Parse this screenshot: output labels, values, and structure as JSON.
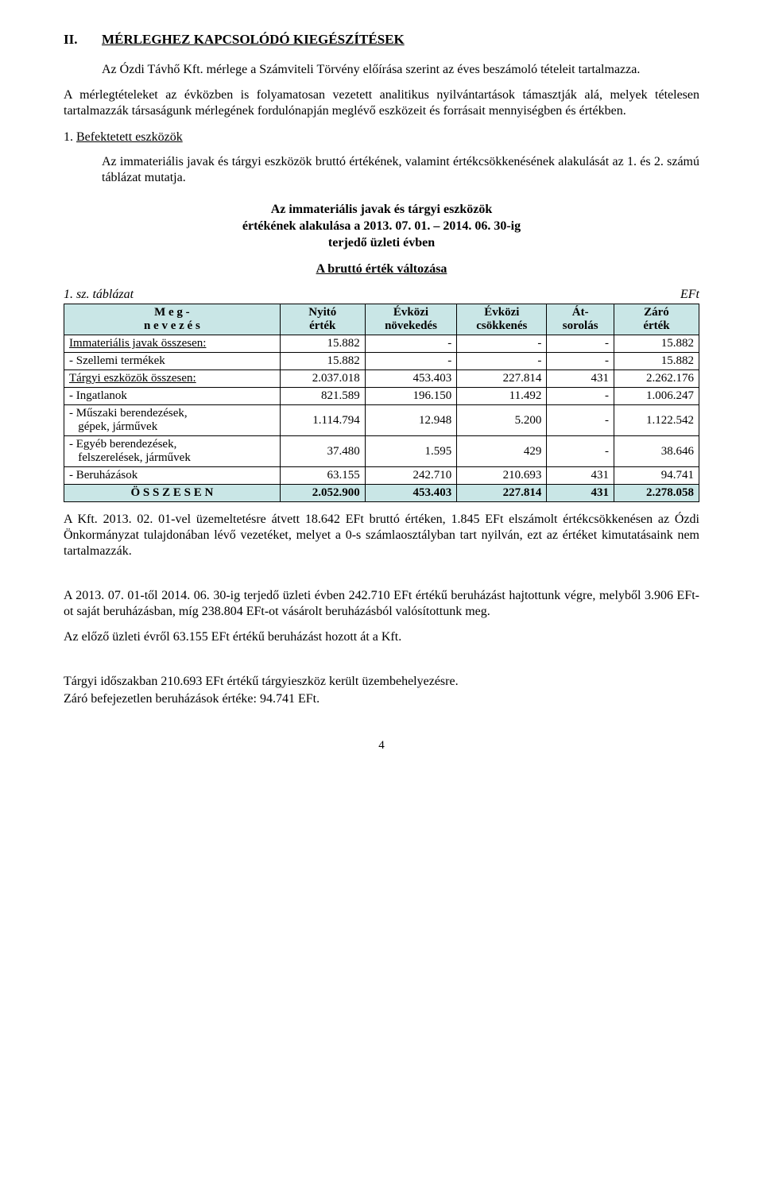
{
  "heading": {
    "roman": "II.",
    "text": "MÉRLEGHEZ KAPCSOLÓDÓ KIEGÉSZÍTÉSEK"
  },
  "para1": "Az Ózdi Távhő Kft. mérlege a Számviteli Törvény előírása szerint az éves beszámoló tételeit tartalmazza.",
  "para2": "A mérlegtételeket az évközben is folyamatosan vezetett analitikus nyilvántartások támasztják alá, melyek tételesen tartalmazzák társaságunk mérlegének fordulónapján meglévő eszközeit és forrásait mennyiségben és értékben.",
  "subheading": {
    "num": "1.",
    "label": "Befektetett eszközök"
  },
  "para3": "Az immateriális javak és tárgyi eszközök bruttó értékének, valamint értékcsökkenésének alakulását az 1. és 2. számú táblázat mutatja.",
  "tableTitle": {
    "l1": "Az immateriális javak és tárgyi eszközök",
    "l2": "értékének alakulása a 2013. 07. 01. – 2014. 06. 30-ig",
    "l3": "terjedő üzleti évben"
  },
  "tableSubtitle": "A bruttó érték változása",
  "tableCaption": "1. sz. táblázat",
  "eft": "EFt",
  "table": {
    "headers": {
      "name_l1": "M e g -",
      "name_l2": "n e v e z é s",
      "open_l1": "Nyitó",
      "open_l2": "érték",
      "inc_l1": "Évközi",
      "inc_l2": "növekedés",
      "dec_l1": "Évközi",
      "dec_l2": "csökkenés",
      "reclass_l1": "Át-",
      "reclass_l2": "sorolás",
      "close_l1": "Záró",
      "close_l2": "érték"
    },
    "rows": [
      {
        "label": "Immateriális javak összesen:",
        "underline": true,
        "indent": false,
        "open": "15.882",
        "inc": "-",
        "dec": "-",
        "reclass": "-",
        "close": "15.882"
      },
      {
        "label": "-  Szellemi termékek",
        "underline": false,
        "indent": false,
        "open": "15.882",
        "inc": "-",
        "dec": "-",
        "reclass": "-",
        "close": "15.882"
      },
      {
        "label": "Tárgyi eszközök összesen:",
        "underline": true,
        "indent": false,
        "open": "2.037.018",
        "inc": "453.403",
        "dec": "227.814",
        "reclass": "431",
        "close": "2.262.176"
      },
      {
        "label": "-  Ingatlanok",
        "underline": false,
        "indent": false,
        "open": "821.589",
        "inc": "196.150",
        "dec": "11.492",
        "reclass": "-",
        "close": "1.006.247"
      },
      {
        "label_l1": "-  Műszaki berendezések,",
        "label_l2": "gépek, járművek",
        "twoLine": true,
        "open": "1.114.794",
        "inc": "12.948",
        "dec": "5.200",
        "reclass": "-",
        "close": "1.122.542"
      },
      {
        "label_l1": "-  Egyéb berendezések,",
        "label_l2": "felszerelések, járművek",
        "twoLine": true,
        "open": "37.480",
        "inc": "1.595",
        "dec": "429",
        "reclass": "-",
        "close": "38.646"
      },
      {
        "label": "-  Beruházások",
        "underline": false,
        "indent": false,
        "open": "63.155",
        "inc": "242.710",
        "dec": "210.693",
        "reclass": "431",
        "close": "94.741"
      }
    ],
    "total": {
      "label": "Ö S S Z E S E N",
      "open": "2.052.900",
      "inc": "453.403",
      "dec": "227.814",
      "reclass": "431",
      "close": "2.278.058"
    }
  },
  "para4": "A Kft. 2013. 02. 01-vel üzemeltetésre átvett 18.642 EFt bruttó értéken, 1.845 EFt elszámolt értékcsökkenésen az Ózdi Önkormányzat tulajdonában lévő vezetéket, melyet a 0-s számlaosztályban tart nyilván, ezt az értéket kimutatásaink nem tartalmazzák.",
  "para5": "A 2013. 07. 01-től 2014. 06. 30-ig terjedő üzleti évben 242.710 EFt értékű beruházást hajtottunk végre, melyből 3.906 EFt-ot saját beruházásban, míg 238.804 EFt-ot vásárolt beruházásból valósítottunk meg.",
  "para6": "Az előző üzleti évről 63.155 EFt értékű beruházást hozott át a Kft.",
  "para7": "Tárgyi időszakban 210.693 EFt értékű tárgyieszköz került üzembehelyezésre.",
  "para8": "Záró befejezetlen beruházások értéke: 94.741 EFt.",
  "pageNumber": "4"
}
